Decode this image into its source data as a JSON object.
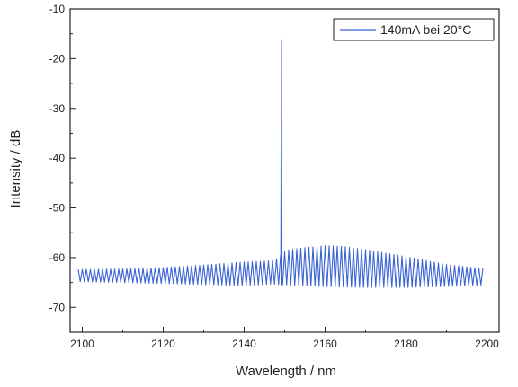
{
  "chart_data": {
    "type": "line",
    "title": "",
    "xlabel": "Wavelength / nm",
    "ylabel": "Intensity / dB",
    "xlim": [
      2097,
      2203
    ],
    "ylim": [
      -75,
      -10
    ],
    "x_ticks": [
      2100,
      2120,
      2140,
      2160,
      2180,
      2200
    ],
    "y_ticks": [
      -10,
      -20,
      -30,
      -40,
      -50,
      -60,
      -70
    ],
    "grid": false,
    "legend_position": "top-right",
    "series": [
      {
        "name": "140mA bei 20°C",
        "color": "#3b63d6",
        "mode_spacing_nm": 1.0,
        "upper_envelope": [
          [
            2099,
            -62.4
          ],
          [
            2110,
            -62.3
          ],
          [
            2120,
            -62.0
          ],
          [
            2130,
            -61.5
          ],
          [
            2140,
            -60.9
          ],
          [
            2147.5,
            -60.6
          ],
          [
            2150.5,
            -58.5
          ],
          [
            2155,
            -58.0
          ],
          [
            2160,
            -57.6
          ],
          [
            2165,
            -57.8
          ],
          [
            2170,
            -58.4
          ],
          [
            2180,
            -59.8
          ],
          [
            2190,
            -61.4
          ],
          [
            2199,
            -62.2
          ]
        ],
        "lower_envelope": [
          [
            2099,
            -64.8
          ],
          [
            2110,
            -65.0
          ],
          [
            2120,
            -65.2
          ],
          [
            2130,
            -65.4
          ],
          [
            2140,
            -65.6
          ],
          [
            2147.5,
            -65.3
          ],
          [
            2150.5,
            -65.5
          ],
          [
            2160,
            -65.8
          ],
          [
            2170,
            -66.0
          ],
          [
            2180,
            -66.0
          ],
          [
            2190,
            -65.8
          ],
          [
            2199,
            -65.5
          ]
        ],
        "peak": {
          "x": 2149.2,
          "y": -16.2
        }
      }
    ]
  }
}
